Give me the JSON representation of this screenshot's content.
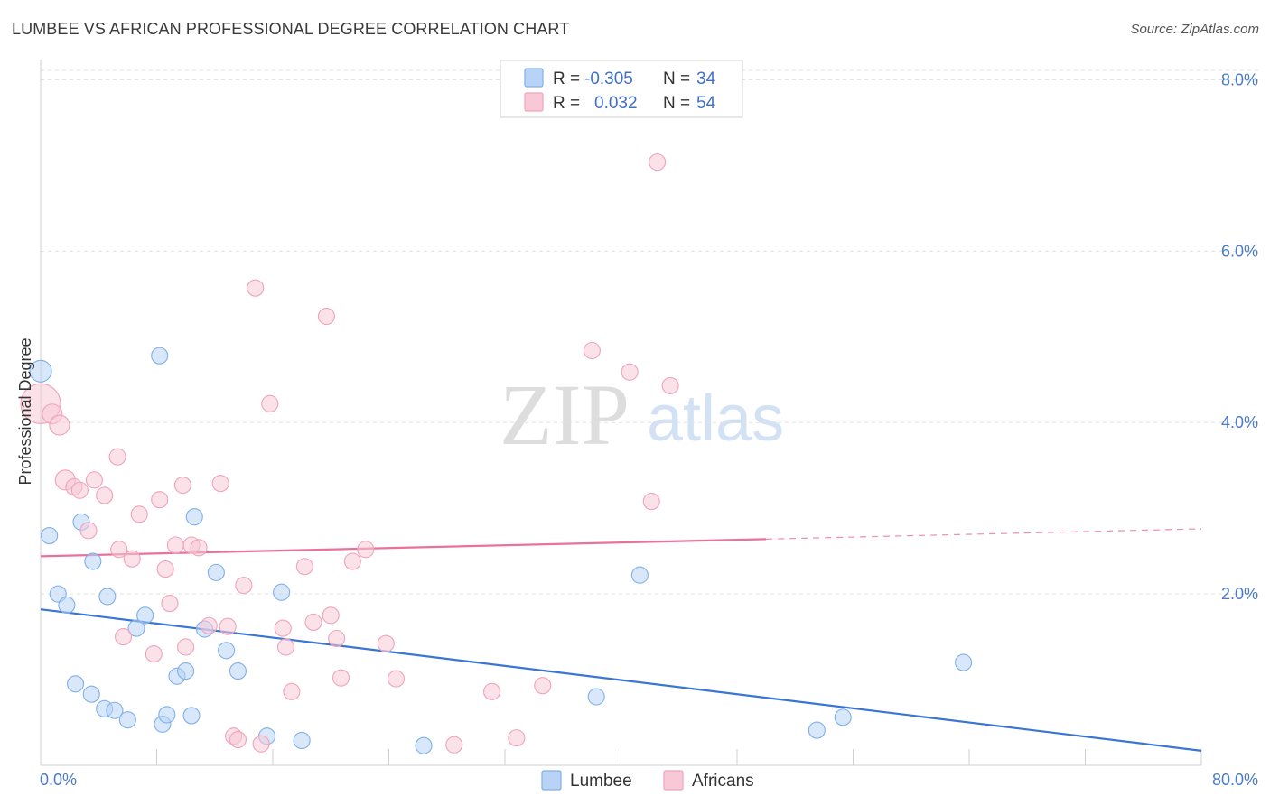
{
  "header": {
    "title": "LUMBEE VS AFRICAN PROFESSIONAL DEGREE CORRELATION CHART",
    "source": "Source: ZipAtlas.com"
  },
  "watermark": {
    "zip": "ZIP",
    "atlas": "atlas"
  },
  "legend": {
    "rows": [
      {
        "r_label": "R =",
        "r_value": "-0.305",
        "n_label": "N =",
        "n_value": "34",
        "color": "#b8d3f5"
      },
      {
        "r_label": "R =",
        "r_value": "0.032",
        "n_label": "N =",
        "n_value": "54",
        "color": "#f8c8d6"
      }
    ]
  },
  "bottom_legend": {
    "lumbee": "Lumbee",
    "africans": "Africans"
  },
  "chart_data": {
    "type": "scatter",
    "title": "LUMBEE VS AFRICAN PROFESSIONAL DEGREE CORRELATION CHART",
    "xlabel": "",
    "ylabel": "Professional Degree",
    "xlim": [
      0,
      80
    ],
    "ylim": [
      0,
      8.3
    ],
    "x_tick_labels": [
      "0.0%",
      "80.0%"
    ],
    "y_ticks": [
      2,
      4,
      6,
      8
    ],
    "y_tick_labels": [
      "2.0%",
      "4.0%",
      "6.0%",
      "8.0%"
    ],
    "grid": true,
    "legend_position": "top-center",
    "series": [
      {
        "name": "Lumbee",
        "color": "#7fb0ea",
        "fill": "#b8d3f5",
        "trend": {
          "x": [
            0,
            80
          ],
          "y": [
            1.82,
            0.17
          ]
        },
        "points": [
          [
            0.0,
            4.6
          ],
          [
            0.6,
            2.68
          ],
          [
            1.2,
            2.0
          ],
          [
            1.8,
            1.87
          ],
          [
            2.4,
            0.95
          ],
          [
            2.8,
            2.84
          ],
          [
            3.5,
            0.83
          ],
          [
            3.6,
            2.38
          ],
          [
            4.4,
            0.66
          ],
          [
            4.6,
            1.97
          ],
          [
            5.1,
            0.64
          ],
          [
            6.0,
            0.53
          ],
          [
            6.6,
            1.6
          ],
          [
            7.2,
            1.75
          ],
          [
            8.2,
            4.78
          ],
          [
            8.4,
            0.48
          ],
          [
            8.7,
            0.59
          ],
          [
            9.4,
            1.04
          ],
          [
            10.0,
            1.1
          ],
          [
            10.4,
            0.58
          ],
          [
            10.6,
            2.9
          ],
          [
            11.3,
            1.59
          ],
          [
            12.1,
            2.25
          ],
          [
            12.8,
            1.34
          ],
          [
            13.6,
            1.1
          ],
          [
            15.6,
            0.34
          ],
          [
            16.6,
            2.02
          ],
          [
            18.0,
            0.29
          ],
          [
            26.4,
            0.23
          ],
          [
            38.3,
            0.8
          ],
          [
            41.3,
            2.22
          ],
          [
            53.5,
            0.41
          ],
          [
            55.3,
            0.56
          ],
          [
            63.6,
            1.2
          ]
        ]
      },
      {
        "name": "Africans",
        "color": "#f0a3bb",
        "fill": "#f8c8d6",
        "trend": {
          "x": [
            0,
            50
          ],
          "y": [
            2.44,
            2.64
          ]
        },
        "trend_extension": {
          "x": [
            50,
            80
          ],
          "y": [
            2.64,
            2.76
          ]
        },
        "points": [
          [
            0.0,
            4.22
          ],
          [
            0.8,
            4.1
          ],
          [
            1.3,
            3.97
          ],
          [
            1.7,
            3.33
          ],
          [
            2.3,
            3.25
          ],
          [
            2.7,
            3.21
          ],
          [
            3.3,
            2.74
          ],
          [
            3.7,
            3.33
          ],
          [
            4.4,
            3.15
          ],
          [
            5.3,
            3.6
          ],
          [
            5.4,
            2.52
          ],
          [
            5.7,
            1.5
          ],
          [
            6.3,
            2.41
          ],
          [
            6.8,
            2.93
          ],
          [
            7.8,
            1.3
          ],
          [
            8.2,
            3.1
          ],
          [
            8.9,
            1.89
          ],
          [
            8.6,
            2.29
          ],
          [
            9.3,
            2.57
          ],
          [
            9.8,
            3.27
          ],
          [
            10.0,
            1.38
          ],
          [
            10.4,
            2.57
          ],
          [
            10.9,
            2.54
          ],
          [
            11.6,
            1.63
          ],
          [
            12.4,
            3.29
          ],
          [
            12.9,
            1.62
          ],
          [
            13.3,
            0.34
          ],
          [
            13.6,
            0.3
          ],
          [
            14.0,
            2.1
          ],
          [
            14.8,
            5.57
          ],
          [
            15.2,
            0.25
          ],
          [
            15.8,
            4.22
          ],
          [
            16.7,
            1.6
          ],
          [
            16.9,
            1.38
          ],
          [
            17.3,
            0.86
          ],
          [
            18.2,
            2.32
          ],
          [
            18.8,
            1.67
          ],
          [
            19.7,
            5.24
          ],
          [
            20.0,
            1.75
          ],
          [
            20.4,
            1.48
          ],
          [
            20.7,
            1.02
          ],
          [
            21.5,
            2.38
          ],
          [
            22.4,
            2.52
          ],
          [
            23.8,
            1.42
          ],
          [
            24.5,
            1.01
          ],
          [
            28.5,
            0.24
          ],
          [
            31.1,
            0.86
          ],
          [
            32.8,
            0.32
          ],
          [
            34.6,
            0.93
          ],
          [
            38.0,
            4.84
          ],
          [
            40.6,
            4.59
          ],
          [
            42.1,
            3.08
          ],
          [
            42.5,
            7.04
          ],
          [
            43.4,
            4.43
          ]
        ]
      }
    ]
  }
}
